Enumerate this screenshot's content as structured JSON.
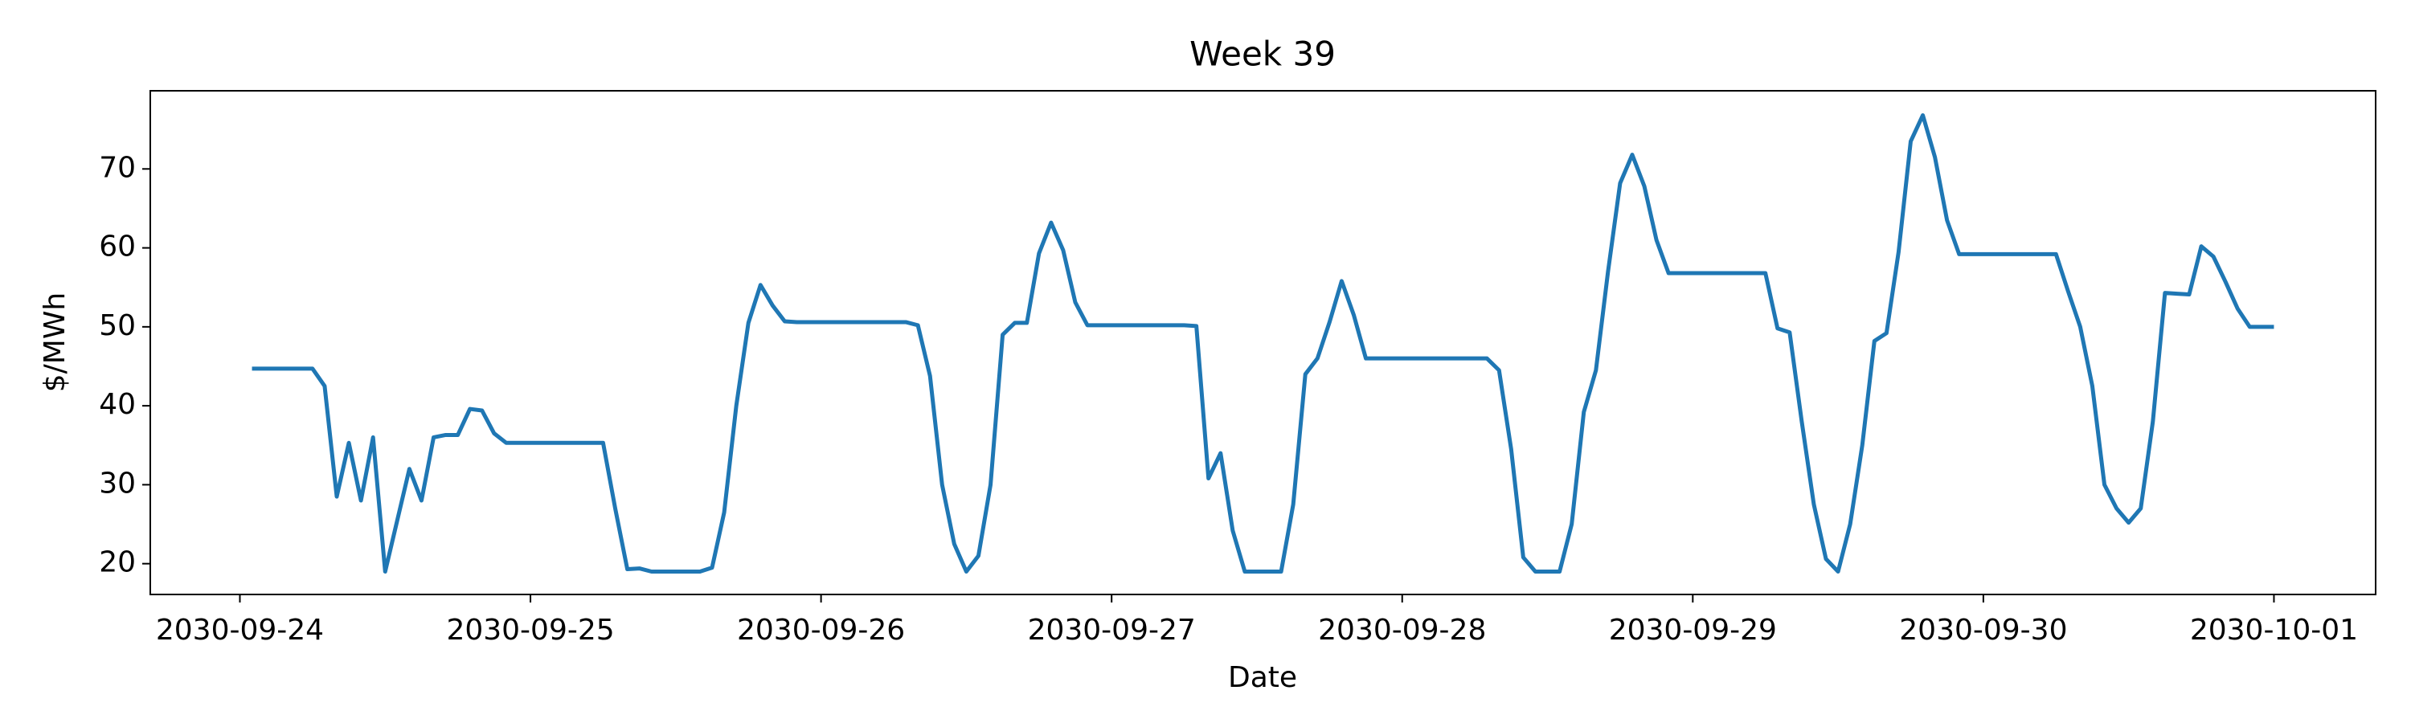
{
  "chart_data": {
    "type": "line",
    "title": "Week 39",
    "x_label": "Date",
    "y_label": "$/MWh",
    "color": "#1f77b4",
    "x": [
      "2030-09-24 01:00",
      "2030-09-24 02:00",
      "2030-09-24 03:00",
      "2030-09-24 04:00",
      "2030-09-24 05:00",
      "2030-09-24 06:00",
      "2030-09-24 07:00",
      "2030-09-24 08:00",
      "2030-09-24 09:00",
      "2030-09-24 10:00",
      "2030-09-24 11:00",
      "2030-09-24 12:00",
      "2030-09-24 13:00",
      "2030-09-24 14:00",
      "2030-09-24 15:00",
      "2030-09-24 16:00",
      "2030-09-24 17:00",
      "2030-09-24 18:00",
      "2030-09-24 19:00",
      "2030-09-24 20:00",
      "2030-09-24 21:00",
      "2030-09-24 22:00",
      "2030-09-24 23:00",
      "2030-09-25 00:00",
      "2030-09-25 01:00",
      "2030-09-25 02:00",
      "2030-09-25 03:00",
      "2030-09-25 04:00",
      "2030-09-25 05:00",
      "2030-09-25 06:00",
      "2030-09-25 07:00",
      "2030-09-25 08:00",
      "2030-09-25 09:00",
      "2030-09-25 10:00",
      "2030-09-25 11:00",
      "2030-09-25 12:00",
      "2030-09-25 13:00",
      "2030-09-25 14:00",
      "2030-09-25 15:00",
      "2030-09-25 16:00",
      "2030-09-25 17:00",
      "2030-09-25 18:00",
      "2030-09-25 19:00",
      "2030-09-25 20:00",
      "2030-09-25 21:00",
      "2030-09-25 22:00",
      "2030-09-25 23:00",
      "2030-09-26 00:00",
      "2030-09-26 01:00",
      "2030-09-26 02:00",
      "2030-09-26 03:00",
      "2030-09-26 04:00",
      "2030-09-26 05:00",
      "2030-09-26 06:00",
      "2030-09-26 07:00",
      "2030-09-26 08:00",
      "2030-09-26 09:00",
      "2030-09-26 10:00",
      "2030-09-26 11:00",
      "2030-09-26 12:00",
      "2030-09-26 13:00",
      "2030-09-26 14:00",
      "2030-09-26 15:00",
      "2030-09-26 16:00",
      "2030-09-26 17:00",
      "2030-09-26 18:00",
      "2030-09-26 19:00",
      "2030-09-26 20:00",
      "2030-09-26 21:00",
      "2030-09-26 22:00",
      "2030-09-26 23:00",
      "2030-09-27 00:00",
      "2030-09-27 01:00",
      "2030-09-27 02:00",
      "2030-09-27 03:00",
      "2030-09-27 04:00",
      "2030-09-27 05:00",
      "2030-09-27 06:00",
      "2030-09-27 07:00",
      "2030-09-27 08:00",
      "2030-09-27 09:00",
      "2030-09-27 10:00",
      "2030-09-27 11:00",
      "2030-09-27 12:00",
      "2030-09-27 13:00",
      "2030-09-27 14:00",
      "2030-09-27 15:00",
      "2030-09-27 16:00",
      "2030-09-27 17:00",
      "2030-09-27 18:00",
      "2030-09-27 19:00",
      "2030-09-27 20:00",
      "2030-09-27 21:00",
      "2030-09-27 22:00",
      "2030-09-27 23:00",
      "2030-09-28 00:00",
      "2030-09-28 01:00",
      "2030-09-28 02:00",
      "2030-09-28 03:00",
      "2030-09-28 04:00",
      "2030-09-28 05:00",
      "2030-09-28 06:00",
      "2030-09-28 07:00",
      "2030-09-28 08:00",
      "2030-09-28 09:00",
      "2030-09-28 10:00",
      "2030-09-28 11:00",
      "2030-09-28 12:00",
      "2030-09-28 13:00",
      "2030-09-28 14:00",
      "2030-09-28 15:00",
      "2030-09-28 16:00",
      "2030-09-28 17:00",
      "2030-09-28 18:00",
      "2030-09-28 19:00",
      "2030-09-28 20:00",
      "2030-09-28 21:00",
      "2030-09-28 22:00",
      "2030-09-28 23:00",
      "2030-09-29 00:00",
      "2030-09-29 01:00",
      "2030-09-29 02:00",
      "2030-09-29 03:00",
      "2030-09-29 04:00",
      "2030-09-29 05:00",
      "2030-09-29 06:00",
      "2030-09-29 07:00",
      "2030-09-29 08:00",
      "2030-09-29 09:00",
      "2030-09-29 10:00",
      "2030-09-29 11:00",
      "2030-09-29 12:00",
      "2030-09-29 13:00",
      "2030-09-29 14:00",
      "2030-09-29 15:00",
      "2030-09-29 16:00",
      "2030-09-29 17:00",
      "2030-09-29 18:00",
      "2030-09-29 19:00",
      "2030-09-29 20:00",
      "2030-09-29 21:00",
      "2030-09-29 22:00",
      "2030-09-29 23:00",
      "2030-09-30 00:00",
      "2030-09-30 01:00",
      "2030-09-30 02:00",
      "2030-09-30 03:00",
      "2030-09-30 04:00",
      "2030-09-30 05:00",
      "2030-09-30 06:00",
      "2030-09-30 07:00",
      "2030-09-30 08:00",
      "2030-09-30 09:00",
      "2030-09-30 10:00",
      "2030-09-30 11:00",
      "2030-09-30 12:00",
      "2030-09-30 13:00",
      "2030-09-30 14:00",
      "2030-09-30 15:00",
      "2030-09-30 16:00",
      "2030-09-30 17:00",
      "2030-09-30 18:00",
      "2030-09-30 19:00",
      "2030-09-30 20:00",
      "2030-09-30 21:00",
      "2030-09-30 22:00",
      "2030-09-30 23:00",
      "2030-10-01 00:00"
    ],
    "values": [
      44.7,
      44.7,
      44.7,
      44.7,
      44.7,
      44.7,
      42.5,
      28.5,
      35.3,
      28,
      36,
      19,
      25.5,
      32,
      28,
      36,
      36.3,
      36.3,
      39.6,
      39.4,
      36.5,
      35.3,
      35.3,
      35.3,
      35.3,
      35.3,
      35.3,
      35.3,
      35.3,
      35.3,
      27,
      19.3,
      19.4,
      19,
      19,
      19,
      19,
      19,
      19.5,
      26.5,
      40,
      50.5,
      55.3,
      52.7,
      50.7,
      50.6,
      50.6,
      50.6,
      50.6,
      50.6,
      50.6,
      50.6,
      50.6,
      50.6,
      50.6,
      50.2,
      43.8,
      30,
      22.5,
      19,
      21,
      30,
      49,
      50.5,
      50.5,
      59.3,
      63.2,
      59.7,
      53.1,
      50.2,
      50.2,
      50.2,
      50.2,
      50.2,
      50.2,
      50.2,
      50.2,
      50.2,
      50.1,
      30.8,
      34,
      24.2,
      19,
      19,
      19,
      19,
      27.5,
      44,
      46,
      50.6,
      55.8,
      51.5,
      46,
      46,
      46,
      46,
      46,
      46,
      46,
      46,
      46,
      46,
      46,
      44.5,
      34.5,
      20.8,
      19,
      19,
      19,
      25,
      39.2,
      44.5,
      57,
      68.2,
      71.8,
      67.8,
      61,
      56.8,
      56.8,
      56.8,
      56.8,
      56.8,
      56.8,
      56.8,
      56.8,
      56.8,
      49.8,
      49.3,
      38,
      27.5,
      20.6,
      19,
      25,
      35,
      48.2,
      49.2,
      59.5,
      73.5,
      76.8,
      71.5,
      63.5,
      59.2,
      59.2,
      59.2,
      59.2,
      59.2,
      59.2,
      59.2,
      59.2,
      59.2,
      54.5,
      50,
      42.5,
      30,
      27,
      25.2,
      27,
      38,
      54.3,
      54.2,
      54.1,
      60.2,
      58.9,
      55.7,
      52.3,
      50,
      50,
      50
    ],
    "xlim": [
      "2030-09-23 16:36",
      "2030-10-01 08:24"
    ],
    "xticks": [
      "2030-09-24",
      "2030-09-25",
      "2030-09-26",
      "2030-09-27",
      "2030-09-28",
      "2030-09-29",
      "2030-09-30",
      "2030-10-01"
    ],
    "ylim": [
      16.1,
      79.9
    ],
    "yticks": [
      20,
      30,
      40,
      50,
      60,
      70
    ],
    "grid": false
  }
}
